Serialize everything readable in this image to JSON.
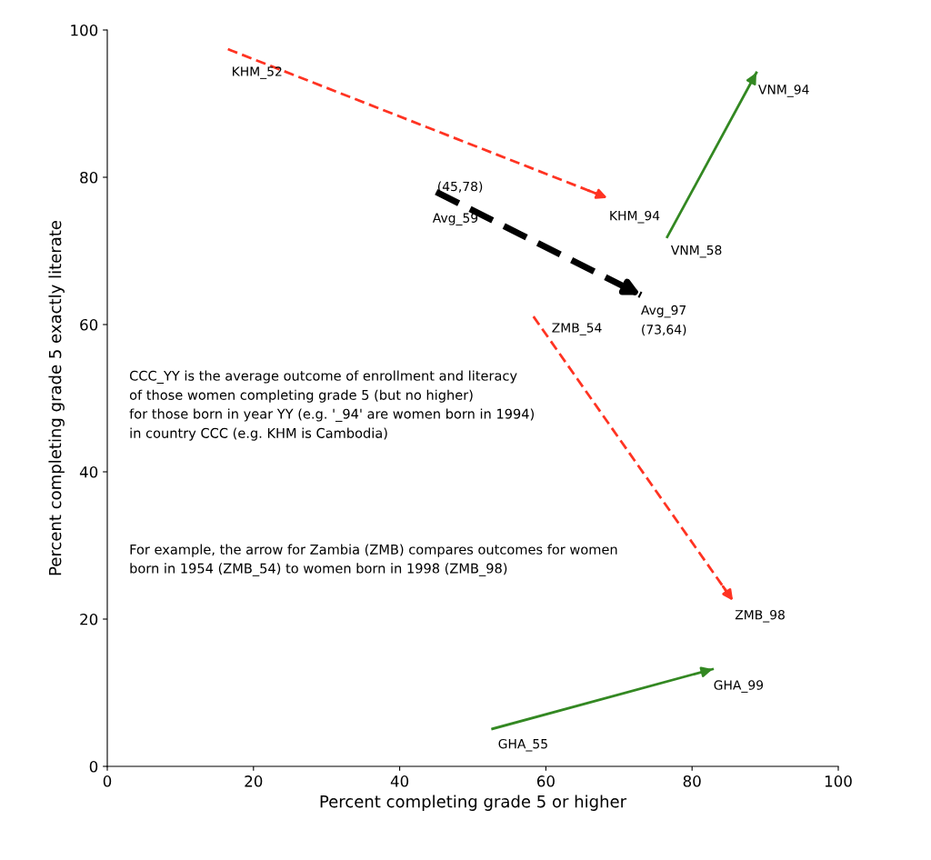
{
  "chart_data": {
    "type": "line",
    "xlabel": "Percent completing grade 5 or higher",
    "ylabel": "Percent completing grade 5 exactly literate",
    "xlim": [
      0,
      100
    ],
    "ylim": [
      0,
      100
    ],
    "xticks": [
      0,
      20,
      40,
      60,
      80,
      100
    ],
    "yticks": [
      0,
      20,
      40,
      60,
      80,
      100
    ],
    "grid": false,
    "legend": false,
    "marker": "none",
    "series": [
      {
        "color": "#ff3322",
        "line_style": "dashed",
        "x": [
          16.5,
          68.4
        ],
        "values": [
          97.4,
          77.2
        ]
      },
      {
        "color": "#000000",
        "line_style": "dashed",
        "x": [
          45,
          73
        ],
        "values": [
          78,
          64
        ]
      },
      {
        "color": "#338822",
        "line_style": "solid",
        "x": [
          76.6,
          88.8
        ],
        "values": [
          71.9,
          94.2
        ]
      },
      {
        "color": "#ff3322",
        "line_style": "dashed",
        "x": [
          58.3,
          85.6
        ],
        "values": [
          61.1,
          22.5
        ]
      },
      {
        "color": "#338822",
        "line_style": "solid",
        "x": [
          52.7,
          82.8
        ],
        "values": [
          5.1,
          13.2
        ]
      }
    ],
    "annotations": [
      {
        "text": "KHM_52",
        "x": 16.5,
        "y": 97.4
      },
      {
        "text": "KHM_94",
        "x": 68.4,
        "y": 77.2
      },
      {
        "text": "VNM_94",
        "x": 88.8,
        "y": 94.2
      },
      {
        "text": "VNM_58",
        "x": 76.6,
        "y": 71.9
      },
      {
        "text": "(45,78)",
        "x": 45,
        "y": 78
      },
      {
        "text": "Avg_59",
        "x": 45,
        "y": 78
      },
      {
        "text": "Avg_97",
        "x": 73,
        "y": 64
      },
      {
        "text": "(73,64)",
        "x": 73,
        "y": 64
      },
      {
        "text": "ZMB_54",
        "x": 58.3,
        "y": 61.1
      },
      {
        "text": "ZMB_98",
        "x": 85.6,
        "y": 22.5
      },
      {
        "text": "GHA_99",
        "x": 82.8,
        "y": 13.2
      },
      {
        "text": "GHA_55",
        "x": 52.7,
        "y": 5.1
      },
      "CCC_YY is the average outcome of enrollment and literacy\nof those women completing grade 5 (but no higher)\nfor those born in year YY (e.g. '_94' are women born in 1994)\nin country CCC (e.g. KHM is Cambodia)",
      "For example, the arrow for Zambia (ZMB) compares outcomes for women\nborn in 1954 (ZMB_54) to women born in 1998 (ZMB_98)"
    ]
  }
}
